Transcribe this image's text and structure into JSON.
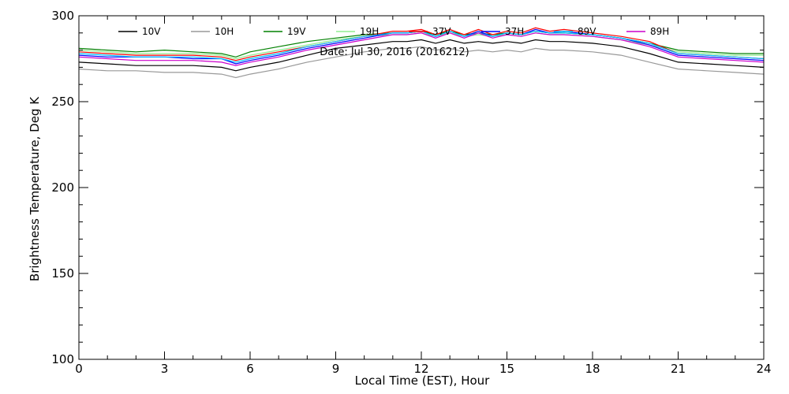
{
  "chart_data": {
    "type": "line",
    "title": "",
    "annotation": "Date: Jul 30, 2016 (2016212)",
    "xlabel": "Local Time (EST), Hour",
    "ylabel": "Brightness Temperature, Deg K",
    "xlim": [
      0,
      24
    ],
    "ylim": [
      100,
      300
    ],
    "x_ticks": [
      0,
      3,
      6,
      9,
      12,
      15,
      18,
      21,
      24
    ],
    "y_ticks": [
      100,
      150,
      200,
      250,
      300
    ],
    "x_minor_step": 1,
    "y_minor_step": 10,
    "grid": false,
    "legend_position": "top",
    "x": [
      0,
      1,
      2,
      3,
      4,
      5,
      5.5,
      6,
      7,
      8,
      9,
      10,
      11,
      11.5,
      12,
      12.5,
      13,
      13.5,
      14,
      14.5,
      15,
      15.5,
      16,
      16.5,
      17,
      18,
      19,
      20,
      21,
      22,
      23,
      24
    ],
    "series": [
      {
        "name": "10V",
        "color": "#000000",
        "values": [
          273,
          272,
          271,
          271,
          271,
          270,
          268,
          270,
          273,
          277,
          281,
          283,
          285,
          285,
          286,
          284,
          286,
          284,
          285,
          284,
          285,
          284,
          286,
          285,
          285,
          284,
          282,
          278,
          273,
          272,
          271,
          270
        ]
      },
      {
        "name": "10H",
        "color": "#999999",
        "values": [
          269,
          268,
          268,
          267,
          267,
          266,
          264,
          266,
          269,
          273,
          276,
          279,
          281,
          281,
          282,
          280,
          281,
          279,
          280,
          279,
          280,
          279,
          281,
          280,
          280,
          279,
          277,
          273,
          269,
          268,
          267,
          266
        ]
      },
      {
        "name": "19V",
        "color": "#008000",
        "values": [
          281,
          280,
          279,
          280,
          279,
          278,
          276,
          279,
          282,
          285,
          287,
          289,
          290,
          290,
          291,
          289,
          291,
          289,
          290,
          289,
          290,
          289,
          291,
          290,
          290,
          289,
          287,
          284,
          280,
          279,
          278,
          278
        ]
      },
      {
        "name": "19H",
        "color": "#90ee90",
        "values": [
          280,
          279,
          278,
          278,
          278,
          277,
          275,
          277,
          280,
          283,
          286,
          288,
          289,
          289,
          290,
          288,
          290,
          288,
          289,
          288,
          289,
          288,
          290,
          289,
          289,
          288,
          286,
          283,
          279,
          278,
          277,
          277
        ]
      },
      {
        "name": "37V",
        "color": "#ff0000",
        "values": [
          279,
          278,
          277,
          277,
          277,
          276,
          274,
          276,
          279,
          282,
          285,
          288,
          291,
          291,
          292,
          289,
          292,
          289,
          292,
          289,
          291,
          290,
          293,
          291,
          292,
          290,
          288,
          285,
          278,
          277,
          276,
          275
        ]
      },
      {
        "name": "37H",
        "color": "#0000ff",
        "values": [
          277,
          276,
          276,
          276,
          275,
          275,
          272,
          274,
          277,
          281,
          284,
          287,
          290,
          290,
          291,
          288,
          291,
          288,
          291,
          288,
          290,
          289,
          292,
          290,
          291,
          289,
          287,
          283,
          277,
          276,
          275,
          274
        ]
      },
      {
        "name": "89V",
        "color": "#00bfff",
        "values": [
          278,
          277,
          276,
          276,
          276,
          275,
          273,
          275,
          278,
          282,
          285,
          288,
          290,
          290,
          291,
          288,
          291,
          288,
          290,
          288,
          290,
          289,
          291,
          290,
          290,
          289,
          287,
          284,
          278,
          277,
          276,
          275
        ]
      },
      {
        "name": "89H",
        "color": "#cc00cc",
        "values": [
          276,
          275,
          274,
          274,
          274,
          273,
          271,
          273,
          276,
          280,
          283,
          286,
          289,
          289,
          290,
          287,
          290,
          287,
          290,
          287,
          289,
          288,
          290,
          289,
          289,
          288,
          286,
          282,
          276,
          275,
          274,
          273
        ]
      }
    ]
  }
}
